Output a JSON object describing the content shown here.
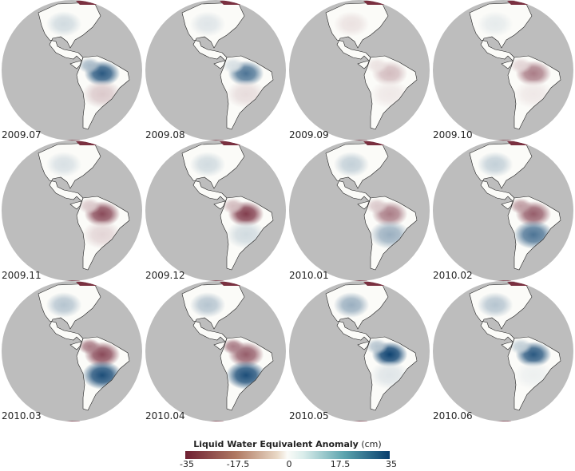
{
  "panels": [
    {
      "label": "2009.07",
      "anomalies": {
        "amazon": 30,
        "nw_sa": 12,
        "s_sa": -8,
        "na_central": 6
      }
    },
    {
      "label": "2009.08",
      "anomalies": {
        "amazon": 25,
        "nw_sa": 5,
        "s_sa": -5,
        "na_central": 4
      }
    },
    {
      "label": "2009.09",
      "anomalies": {
        "amazon": -10,
        "nw_sa": -4,
        "s_sa": -3,
        "na_central": -4
      }
    },
    {
      "label": "2009.10",
      "anomalies": {
        "amazon": -20,
        "nw_sa": -6,
        "s_sa": -3,
        "na_central": 3
      }
    },
    {
      "label": "2009.11",
      "anomalies": {
        "amazon": -28,
        "nw_sa": -8,
        "s_sa": -6,
        "na_central": 5
      }
    },
    {
      "label": "2009.12",
      "anomalies": {
        "amazon": -30,
        "nw_sa": -10,
        "s_sa": 6,
        "na_central": 6
      }
    },
    {
      "label": "2010.01",
      "anomalies": {
        "amazon": -20,
        "nw_sa": -8,
        "s_sa": 14,
        "na_central": 8
      }
    },
    {
      "label": "2010.02",
      "anomalies": {
        "amazon": -25,
        "nw_sa": -15,
        "s_sa": 25,
        "na_central": 8
      }
    },
    {
      "label": "2010.03",
      "anomalies": {
        "amazon": -28,
        "nw_sa": -20,
        "s_sa": 32,
        "na_central": 10
      }
    },
    {
      "label": "2010.04",
      "anomalies": {
        "amazon": -25,
        "nw_sa": -20,
        "s_sa": 32,
        "na_central": 10
      }
    },
    {
      "label": "2010.05",
      "anomalies": {
        "amazon": 34,
        "nw_sa": 10,
        "s_sa": 4,
        "na_central": 14
      }
    },
    {
      "label": "2010.06",
      "anomalies": {
        "amazon": 30,
        "nw_sa": 8,
        "s_sa": 2,
        "na_central": 10
      }
    }
  ],
  "legend": {
    "title": "Liquid Water Equivalent Anomaly",
    "unit": "(cm)",
    "ticks": [
      "-35",
      "-17.5",
      "0",
      "17.5",
      "35"
    ],
    "min": -35,
    "max": 35,
    "colors": {
      "neg": "#6e1f32",
      "mid": "#fbfbf8",
      "pos": "#083e6d",
      "ocean": "#bdbdbd"
    }
  }
}
